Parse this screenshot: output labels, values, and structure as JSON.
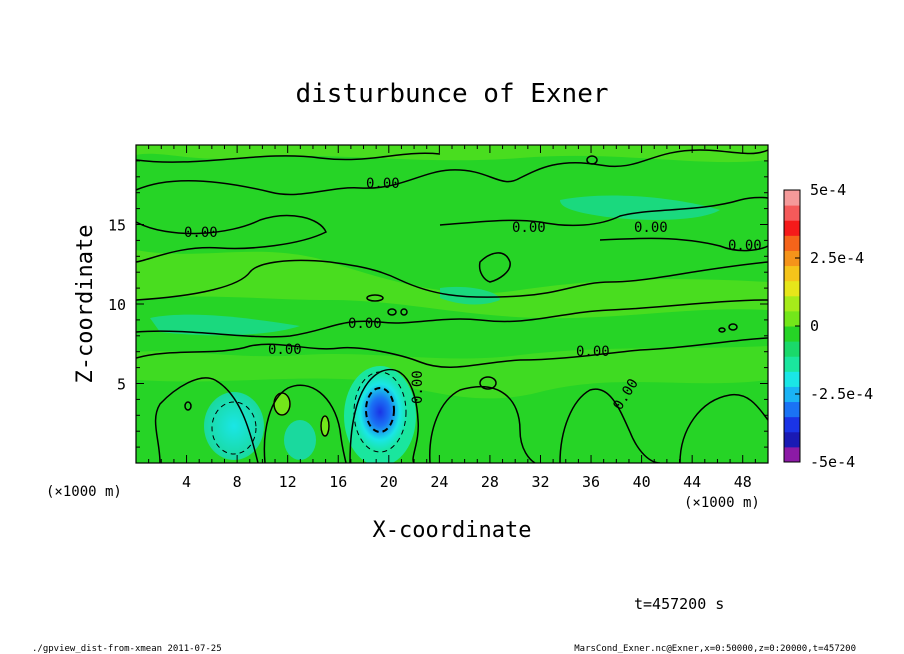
{
  "chart_data": {
    "type": "heatmap",
    "title": "disturbunce of Exner",
    "xlabel": "X-coordinate",
    "ylabel": "Z-coordinate",
    "x_unit_left": "(×1000 m)",
    "x_unit_right": "(×1000 m)",
    "xlim": [
      0,
      50
    ],
    "ylim": [
      0,
      20
    ],
    "x_ticks": [
      "4",
      "8",
      "12",
      "16",
      "20",
      "24",
      "28",
      "32",
      "36",
      "40",
      "44",
      "48"
    ],
    "y_ticks": [
      "5",
      "10",
      "15"
    ],
    "x_tick_values": [
      4,
      8,
      12,
      16,
      20,
      24,
      28,
      32,
      36,
      40,
      44,
      48
    ],
    "y_tick_values": [
      5,
      10,
      15
    ],
    "colorbar": {
      "min": -0.0005,
      "max": 0.0005,
      "labels": [
        "5e-4",
        "2.5e-4",
        "0",
        "-2.5e-4",
        "-5e-4"
      ],
      "label_values": [
        0.0005,
        0.00025,
        0,
        -0.00025,
        -0.0005
      ],
      "colors": [
        "#8c1aa6",
        "#1a1ab4",
        "#1a34e6",
        "#1a73f5",
        "#1ab3f5",
        "#1ae6e6",
        "#1ae69e",
        "#1ad96a",
        "#26d426",
        "#73e61a",
        "#a6eb1a",
        "#e6e61a",
        "#f5c41a",
        "#f5941a",
        "#f5641a",
        "#f51a1a",
        "#f55a5a",
        "#f59a9a"
      ]
    },
    "contour_labels": [
      "0.00",
      "0.00",
      "0.00",
      "0.00",
      "0.00",
      "0.00",
      "0.00",
      "0.00",
      "0.00",
      "0.00"
    ],
    "features": [
      {
        "x": 19.5,
        "z": 3.8,
        "value": -0.0003
      },
      {
        "x": 7.8,
        "z": 2.0,
        "value": -0.00016
      },
      {
        "x": 11.7,
        "z": 4.3,
        "value": 5e-05
      },
      {
        "x": 28,
        "z": 15.5,
        "value": 3e-05
      },
      {
        "x": 6,
        "z": 8,
        "value": -3e-05
      }
    ],
    "time_label": "t=457200 s",
    "footer_left": "./gpview_dist-from-xmean   2011-07-25",
    "footer_right": "MarsCond_Exner.nc@Exner,x=0:50000,z=0:20000,t=457200"
  }
}
